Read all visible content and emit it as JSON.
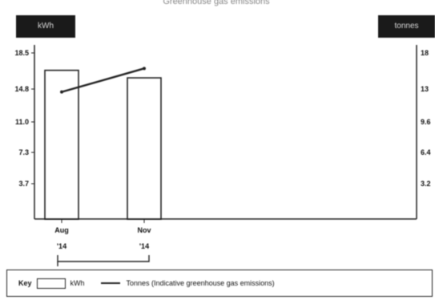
{
  "chart_data": {
    "type": "bar",
    "title": "Greenhouse gas emissions",
    "left_axis_title": "kWh",
    "right_axis_title": "tonnes",
    "categories": [
      {
        "month": "Aug",
        "year": "'14"
      },
      {
        "month": "Nov",
        "year": "'14"
      }
    ],
    "series": [
      {
        "name": "kWh",
        "kind": "bar",
        "values": [
          15.8,
          15.0
        ]
      },
      {
        "name": "Tonnes (Indicative greenhouse gas emissions)",
        "kind": "line",
        "values": [
          13.5,
          16.0
        ]
      }
    ],
    "left_ticks": [
      "18.5",
      "14.8",
      "11.0",
      "7.3",
      "3.7"
    ],
    "right_ticks": [
      "18",
      "13",
      "9.6",
      "6.4",
      "3.2"
    ],
    "ylim": [
      0,
      18.5
    ],
    "grid": false,
    "legend": {
      "position": "bottom",
      "key_label": "Key",
      "bar_label": "kWh",
      "line_label": "Tonnes (Indicative greenhouse gas emissions)"
    }
  }
}
